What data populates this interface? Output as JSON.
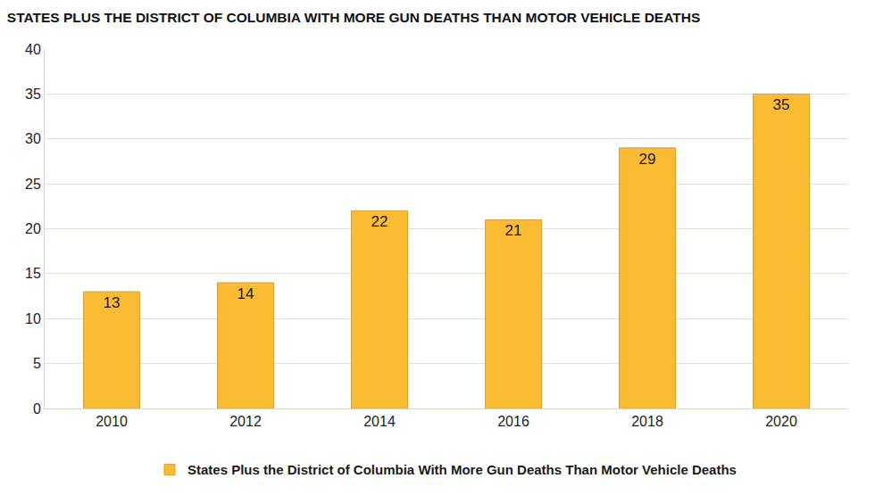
{
  "chart_data": {
    "type": "bar",
    "title": "STATES PLUS THE DISTRICT OF COLUMBIA WITH MORE GUN DEATHS THAN MOTOR VEHICLE DEATHS",
    "categories": [
      "2010",
      "2012",
      "2014",
      "2016",
      "2018",
      "2020"
    ],
    "series": [
      {
        "name": "States Plus the District of Columbia With More Gun Deaths Than Motor Vehicle Deaths",
        "color": "#fbbc33",
        "values": [
          13,
          14,
          22,
          21,
          29,
          35
        ]
      }
    ],
    "ylim": [
      0,
      40
    ],
    "yticks": [
      0,
      5,
      10,
      15,
      20,
      25,
      30,
      35,
      40
    ],
    "grid": true,
    "data_labels": true,
    "legend": "bottom"
  }
}
